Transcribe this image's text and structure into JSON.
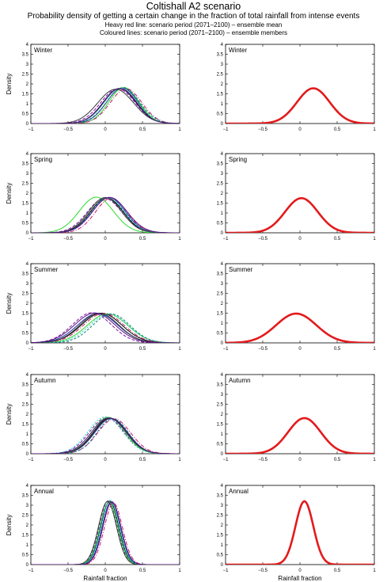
{
  "header": {
    "title": "Coltishall A2 scenario",
    "subtitle": "Probability density of getting a certain change in the fraction of total rainfall from intense events",
    "note1": "Heavy red line: scenario period (2071–2100) – ensemble mean",
    "note2": "Coloured lines: scenario period (2071–2100) – ensemble members"
  },
  "axes": {
    "xlabel": "Rainfall fraction",
    "ylabel": "Density",
    "xlim": [
      -1,
      1
    ],
    "ylim": [
      0,
      4
    ],
    "xticks": [
      -1,
      -0.5,
      0,
      0.5,
      1
    ],
    "xtick_labels": [
      "−1",
      "−0.5",
      "0",
      "0.5",
      "1"
    ],
    "yticks": [
      0,
      0.5,
      1,
      1.5,
      2,
      2.5,
      3,
      3.5,
      4
    ],
    "ytick_labels": [
      "0",
      "0.5",
      "1",
      "1.5",
      "2",
      "2.5",
      "3",
      "3.5",
      "4"
    ]
  },
  "colors": {
    "mean": "#e31a1c",
    "members": [
      "#000000",
      "#1f2aa6",
      "#7a1aa6",
      "#2bd92b",
      "#2ad0c4",
      "#d0166e",
      "#3a3a3a",
      "#0a7a7a",
      "#5a1080"
    ]
  },
  "chart_data": [
    {
      "type": "line",
      "season": "Winter",
      "panel": "members",
      "series": [
        {
          "mean": 0.2,
          "sd": 0.22,
          "peak": 1.78
        },
        {
          "mean": 0.23,
          "sd": 0.21,
          "peak": 1.8
        },
        {
          "mean": 0.17,
          "sd": 0.23,
          "peak": 1.75
        },
        {
          "mean": 0.25,
          "sd": 0.2,
          "peak": 1.82
        },
        {
          "mean": 0.21,
          "sd": 0.22,
          "peak": 1.79
        },
        {
          "mean": 0.28,
          "sd": 0.21,
          "peak": 1.76
        },
        {
          "mean": 0.14,
          "sd": 0.24,
          "peak": 1.73
        },
        {
          "mean": 0.24,
          "sd": 0.22,
          "peak": 1.81
        },
        {
          "mean": 0.19,
          "sd": 0.22,
          "peak": 1.77
        }
      ]
    },
    {
      "type": "line",
      "season": "Winter",
      "panel": "mean",
      "series": [
        {
          "mean": 0.18,
          "sd": 0.22,
          "peak": 1.78
        }
      ]
    },
    {
      "type": "line",
      "season": "Spring",
      "panel": "members",
      "series": [
        {
          "mean": 0.02,
          "sd": 0.22,
          "peak": 1.76
        },
        {
          "mean": 0.05,
          "sd": 0.22,
          "peak": 1.78
        },
        {
          "mean": -0.01,
          "sd": 0.23,
          "peak": 1.74
        },
        {
          "mean": -0.12,
          "sd": 0.23,
          "peak": 1.8
        },
        {
          "mean": 0.04,
          "sd": 0.22,
          "peak": 1.77
        },
        {
          "mean": 0.08,
          "sd": 0.21,
          "peak": 1.75
        },
        {
          "mean": 0.0,
          "sd": 0.22,
          "peak": 1.78
        },
        {
          "mean": 0.03,
          "sd": 0.22,
          "peak": 1.76
        },
        {
          "mean": 0.06,
          "sd": 0.23,
          "peak": 1.79
        }
      ]
    },
    {
      "type": "line",
      "season": "Spring",
      "panel": "mean",
      "series": [
        {
          "mean": 0.02,
          "sd": 0.22,
          "peak": 1.75
        }
      ]
    },
    {
      "type": "line",
      "season": "Summer",
      "panel": "members",
      "series": [
        {
          "mean": -0.05,
          "sd": 0.27,
          "peak": 1.5
        },
        {
          "mean": -0.1,
          "sd": 0.27,
          "peak": 1.48
        },
        {
          "mean": -0.18,
          "sd": 0.26,
          "peak": 1.52
        },
        {
          "mean": 0.03,
          "sd": 0.27,
          "peak": 1.47
        },
        {
          "mean": 0.05,
          "sd": 0.26,
          "peak": 1.45
        },
        {
          "mean": -0.02,
          "sd": 0.27,
          "peak": 1.49
        },
        {
          "mean": -0.08,
          "sd": 0.26,
          "peak": 1.5
        },
        {
          "mean": 0.08,
          "sd": 0.25,
          "peak": 1.46
        },
        {
          "mean": -0.14,
          "sd": 0.27,
          "peak": 1.51
        }
      ]
    },
    {
      "type": "line",
      "season": "Summer",
      "panel": "mean",
      "series": [
        {
          "mean": -0.05,
          "sd": 0.27,
          "peak": 1.48
        }
      ]
    },
    {
      "type": "line",
      "season": "Autumn",
      "panel": "members",
      "series": [
        {
          "mean": 0.06,
          "sd": 0.22,
          "peak": 1.8
        },
        {
          "mean": 0.08,
          "sd": 0.22,
          "peak": 1.78
        },
        {
          "mean": 0.02,
          "sd": 0.23,
          "peak": 1.82
        },
        {
          "mean": 0.04,
          "sd": 0.22,
          "peak": 1.84
        },
        {
          "mean": 0.0,
          "sd": 0.23,
          "peak": 1.86
        },
        {
          "mean": 0.12,
          "sd": 0.22,
          "peak": 1.76
        },
        {
          "mean": 0.07,
          "sd": 0.22,
          "peak": 1.79
        },
        {
          "mean": 0.1,
          "sd": 0.21,
          "peak": 1.77
        },
        {
          "mean": 0.05,
          "sd": 0.23,
          "peak": 1.81
        }
      ]
    },
    {
      "type": "line",
      "season": "Autumn",
      "panel": "mean",
      "series": [
        {
          "mean": 0.06,
          "sd": 0.22,
          "peak": 1.8
        }
      ]
    },
    {
      "type": "line",
      "season": "Annual",
      "panel": "members",
      "series": [
        {
          "mean": 0.06,
          "sd": 0.12,
          "peak": 3.2
        },
        {
          "mean": 0.08,
          "sd": 0.12,
          "peak": 3.18
        },
        {
          "mean": 0.04,
          "sd": 0.12,
          "peak": 3.22
        },
        {
          "mean": 0.05,
          "sd": 0.12,
          "peak": 3.15
        },
        {
          "mean": 0.07,
          "sd": 0.12,
          "peak": 3.25
        },
        {
          "mean": 0.11,
          "sd": 0.12,
          "peak": 3.12
        },
        {
          "mean": 0.03,
          "sd": 0.12,
          "peak": 3.19
        },
        {
          "mean": 0.06,
          "sd": 0.12,
          "peak": 3.21
        },
        {
          "mean": 0.09,
          "sd": 0.12,
          "peak": 3.17
        }
      ]
    },
    {
      "type": "line",
      "season": "Annual",
      "panel": "mean",
      "series": [
        {
          "mean": 0.06,
          "sd": 0.12,
          "peak": 3.2
        }
      ]
    }
  ]
}
